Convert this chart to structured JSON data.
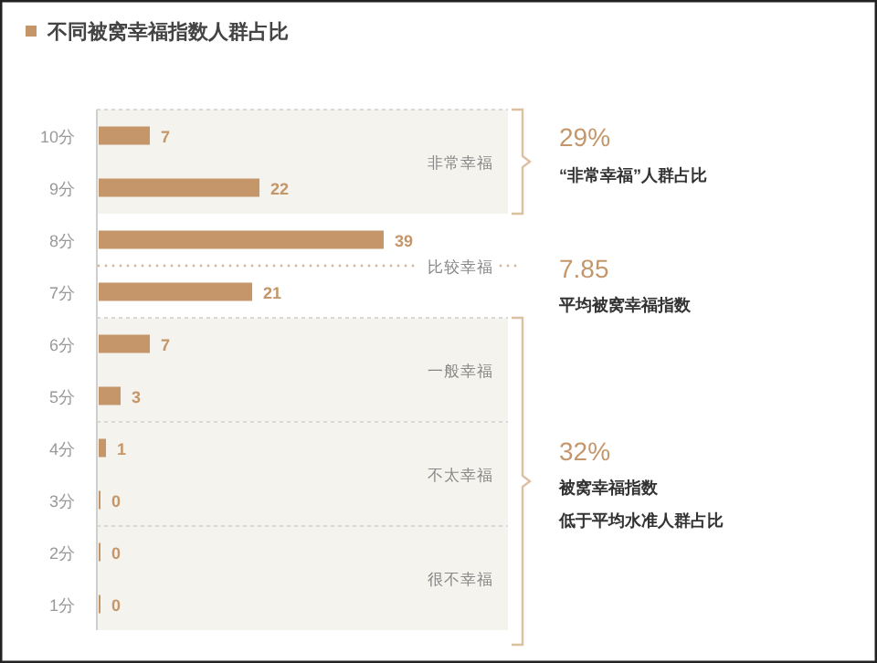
{
  "chart_data": {
    "type": "bar",
    "orientation": "horizontal",
    "title": "不同被窝幸福指数人群占比",
    "categories": [
      "10分",
      "9分",
      "8分",
      "7分",
      "6分",
      "5分",
      "4分",
      "3分",
      "2分",
      "1分"
    ],
    "values": [
      7,
      22,
      39,
      21,
      7,
      3,
      1,
      0,
      0,
      0
    ],
    "color": "#c4966a",
    "data_labels": true,
    "bands": [
      {
        "axis": "y",
        "from": "10分",
        "to": "9分",
        "label": "非常幸福",
        "color": "#f5f3ee"
      },
      {
        "axis": "y",
        "from": "6分",
        "to": "5分",
        "label": "一般幸福",
        "color": "#f5f3ee"
      },
      {
        "axis": "y",
        "from": "4分",
        "to": "3分",
        "label": "不太幸福",
        "color": "#f5f3ee"
      },
      {
        "axis": "y",
        "from": "2分",
        "to": "1分",
        "label": "很不幸福",
        "color": "#f5f3ee"
      }
    ],
    "annotations": [
      "比较幸福",
      "29%",
      "“非常幸福”人群占比",
      "7.85",
      "平均被窝幸福指数",
      "32%",
      "被窝幸福指数",
      "低于平均水准人群占比"
    ]
  }
}
